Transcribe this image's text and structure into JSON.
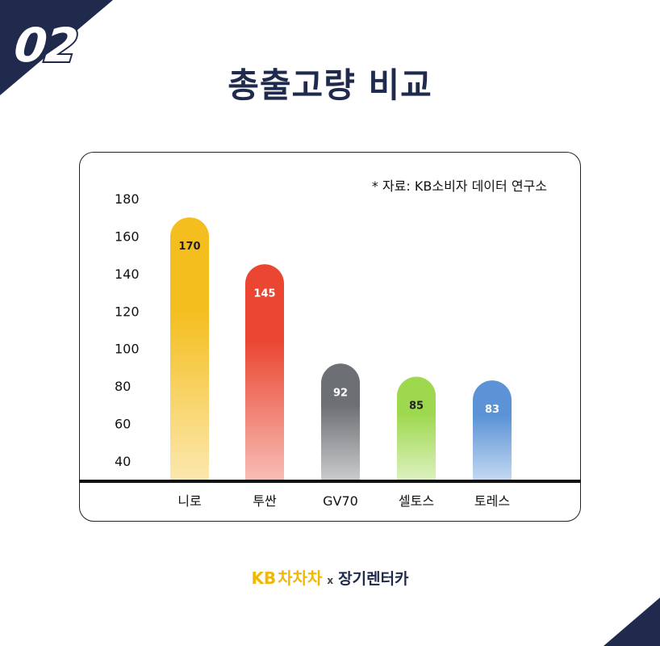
{
  "badge": "02",
  "title": "총출고량 비교",
  "source_note": "* 자료: KB소비자 데이터 연구소",
  "logo": {
    "kb": "KB",
    "chacha": "차차차",
    "x": "x",
    "partner": "장기렌터카"
  },
  "colors": {
    "navy": "#1f2a4d",
    "niro": "#f4be1e",
    "tucson": "#ea4631",
    "gv70": "#6c6f74",
    "seltos": "#9ed84e",
    "torres": "#5b93d6"
  },
  "chart_data": {
    "type": "bar",
    "categories": [
      "니로",
      "투싼",
      "GV70",
      "셀토스",
      "토레스"
    ],
    "values": [
      170,
      145,
      92,
      85,
      83
    ],
    "data_labels": [
      "170",
      "145",
      "92",
      "85",
      "83"
    ],
    "yticks": [
      "180",
      "160",
      "140",
      "120",
      "100",
      "80",
      "60",
      "40"
    ],
    "ylim": [
      30,
      180
    ],
    "colors": [
      "#f4be1e",
      "#ea4631",
      "#6c6f74",
      "#9ed84e",
      "#5b93d6"
    ],
    "title": "총출고량 비교",
    "annotation": "* 자료: KB소비자 데이터 연구소",
    "grid": false,
    "legend": "none"
  }
}
